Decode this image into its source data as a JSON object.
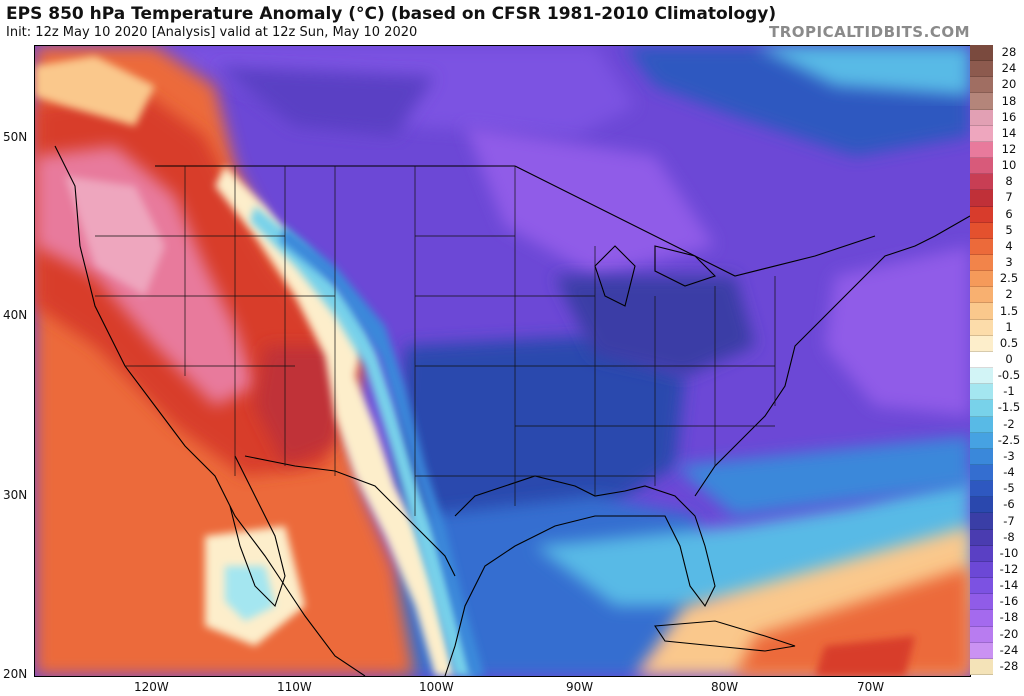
{
  "header": {
    "title": "EPS 850 hPa Temperature Anomaly (°C) (based on CFSR 1981-2010 Climatology)",
    "subtitle": "Init: 12z May 10 2020   [Analysis]   valid at 12z Sun, May 10 2020",
    "watermark": "TROPICALTIDBITS.COM"
  },
  "map": {
    "region": "North America / CONUS",
    "lat_ticks": [
      "50N",
      "40N",
      "30N",
      "20N"
    ],
    "lon_ticks": [
      "120W",
      "110W",
      "100W",
      "90W",
      "80W",
      "70W"
    ]
  },
  "colorbar": {
    "levels": [
      {
        "label": "28",
        "color": "#7a4a3e"
      },
      {
        "label": "24",
        "color": "#8d5a4e"
      },
      {
        "label": "20",
        "color": "#a06e62"
      },
      {
        "label": "18",
        "color": "#b4857a"
      },
      {
        "label": "16",
        "color": "#e2a0b4"
      },
      {
        "label": "14",
        "color": "#eea6be"
      },
      {
        "label": "12",
        "color": "#e87a9c"
      },
      {
        "label": "10",
        "color": "#d85a7a"
      },
      {
        "label": "8",
        "color": "#c83e54"
      },
      {
        "label": "7",
        "color": "#c03038"
      },
      {
        "label": "6",
        "color": "#d83c2c"
      },
      {
        "label": "5",
        "color": "#e4512e"
      },
      {
        "label": "4",
        "color": "#ec6a3a"
      },
      {
        "label": "3",
        "color": "#f2844a"
      },
      {
        "label": "2.5",
        "color": "#f59a5a"
      },
      {
        "label": "2",
        "color": "#f8b070"
      },
      {
        "label": "1.5",
        "color": "#fac88c"
      },
      {
        "label": "1",
        "color": "#fcdcaa"
      },
      {
        "label": "0.5",
        "color": "#fdeecb"
      },
      {
        "label": "0",
        "color": "#ffffff"
      },
      {
        "label": "-0.5",
        "color": "#d2f4f6"
      },
      {
        "label": "-1",
        "color": "#a4e6f0"
      },
      {
        "label": "-1.5",
        "color": "#78d2ea"
      },
      {
        "label": "-2",
        "color": "#58bae6"
      },
      {
        "label": "-2.5",
        "color": "#46a2e2"
      },
      {
        "label": "-3",
        "color": "#3a88da"
      },
      {
        "label": "-4",
        "color": "#346ed0"
      },
      {
        "label": "-5",
        "color": "#2e58c0"
      },
      {
        "label": "-6",
        "color": "#2a48ae"
      },
      {
        "label": "-7",
        "color": "#3a3ea6"
      },
      {
        "label": "-8",
        "color": "#4a3cb0"
      },
      {
        "label": "-10",
        "color": "#5a40c4"
      },
      {
        "label": "-12",
        "color": "#6c48d6"
      },
      {
        "label": "-14",
        "color": "#7c52e2"
      },
      {
        "label": "-16",
        "color": "#905ce8"
      },
      {
        "label": "-18",
        "color": "#a46aee"
      },
      {
        "label": "-20",
        "color": "#b87cf0"
      },
      {
        "label": "-24",
        "color": "#ca92f2"
      },
      {
        "label": "-28",
        "color": "#f4e3b8"
      }
    ]
  },
  "colors": {
    "hot": "#d83c2c",
    "warm": "#ec6a3a",
    "pink": "#e87a9c",
    "neutral": "#fdeecb",
    "cool": "#58bae6",
    "blue": "#2e58c0",
    "purple": "#6c48d6",
    "violet": "#905ce8"
  }
}
